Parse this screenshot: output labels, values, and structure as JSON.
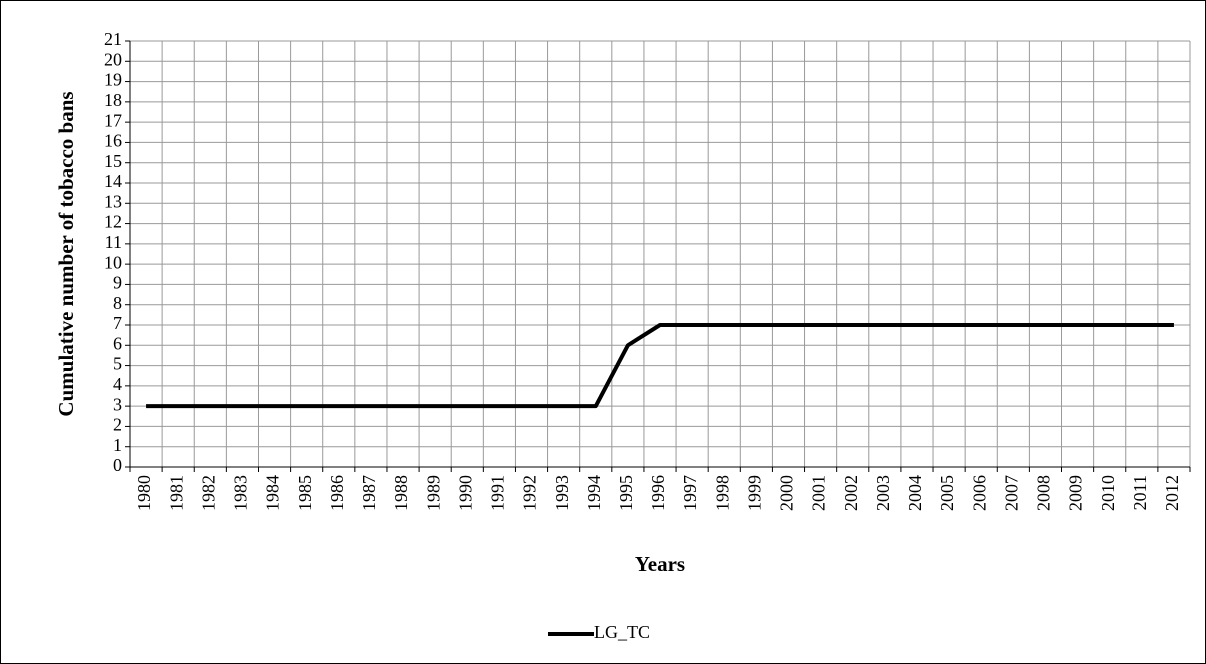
{
  "chart_data": {
    "type": "line",
    "y_label": "Cumulative number of tobacco bans",
    "x_label": "Years",
    "categories": [
      "1980",
      "1981",
      "1982",
      "1983",
      "1984",
      "1985",
      "1986",
      "1987",
      "1988",
      "1989",
      "1990",
      "1991",
      "1992",
      "1993",
      "1994",
      "1995",
      "1996",
      "1997",
      "1998",
      "1999",
      "2000",
      "2001",
      "2002",
      "2003",
      "2004",
      "2005",
      "2006",
      "2007",
      "2008",
      "2009",
      "2010",
      "2011",
      "2012"
    ],
    "series": [
      {
        "name": "LG_TC",
        "color": "#000000",
        "values": [
          3,
          3,
          3,
          3,
          3,
          3,
          3,
          3,
          3,
          3,
          3,
          3,
          3,
          3,
          3,
          6,
          7,
          7,
          7,
          7,
          7,
          7,
          7,
          7,
          7,
          7,
          7,
          7,
          7,
          7,
          7,
          7,
          7
        ]
      }
    ],
    "ylim": [
      0,
      21
    ],
    "yticks": [
      0,
      1,
      2,
      3,
      4,
      5,
      6,
      7,
      8,
      9,
      10,
      11,
      12,
      13,
      14,
      15,
      16,
      17,
      18,
      19,
      20,
      21
    ],
    "grid": true,
    "legend": "bottom"
  }
}
